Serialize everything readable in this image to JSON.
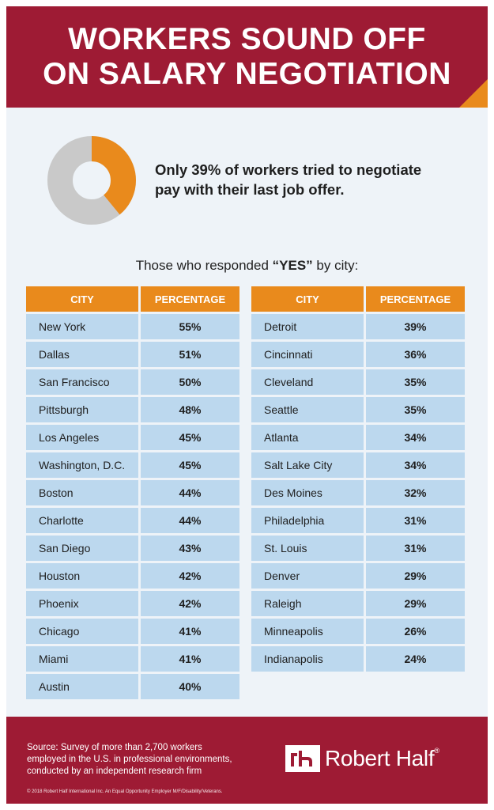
{
  "header": {
    "title_line1": "WORKERS SOUND OFF",
    "title_line2": "ON SALARY NEGOTIATION"
  },
  "summary": {
    "percentage": 39,
    "headline_line1": "Only 39% of workers tried to negotiate",
    "headline_line2": "pay with their last job offer.",
    "colors": {
      "yes": "#e98a1c",
      "no": "#c9c9c9"
    }
  },
  "table_intro": {
    "before": "Those who responded ",
    "emphasis": "“YES”",
    "after": " by city:"
  },
  "table": {
    "columns": [
      "CITY",
      "PERCENTAGE"
    ],
    "left_rows": [
      {
        "city": "New York",
        "pct": "55%"
      },
      {
        "city": "Dallas",
        "pct": "51%"
      },
      {
        "city": "San Francisco",
        "pct": "50%"
      },
      {
        "city": "Pittsburgh",
        "pct": "48%"
      },
      {
        "city": "Los Angeles",
        "pct": "45%"
      },
      {
        "city": "Washington, D.C.",
        "pct": "45%"
      },
      {
        "city": "Boston",
        "pct": "44%"
      },
      {
        "city": "Charlotte",
        "pct": "44%"
      },
      {
        "city": "San Diego",
        "pct": "43%"
      },
      {
        "city": "Houston",
        "pct": "42%"
      },
      {
        "city": "Phoenix",
        "pct": "42%"
      },
      {
        "city": "Chicago",
        "pct": "41%"
      },
      {
        "city": "Miami",
        "pct": "41%"
      },
      {
        "city": "Austin",
        "pct": "40%"
      }
    ],
    "right_rows": [
      {
        "city": "Detroit",
        "pct": "39%"
      },
      {
        "city": "Cincinnati",
        "pct": "36%"
      },
      {
        "city": "Cleveland",
        "pct": "35%"
      },
      {
        "city": "Seattle",
        "pct": "35%"
      },
      {
        "city": "Atlanta",
        "pct": "34%"
      },
      {
        "city": "Salt Lake City",
        "pct": "34%"
      },
      {
        "city": "Des Moines",
        "pct": "32%"
      },
      {
        "city": "Philadelphia",
        "pct": "31%"
      },
      {
        "city": "St. Louis",
        "pct": "31%"
      },
      {
        "city": "Denver",
        "pct": "29%"
      },
      {
        "city": "Raleigh",
        "pct": "29%"
      },
      {
        "city": "Minneapolis",
        "pct": "26%"
      },
      {
        "city": "Indianapolis",
        "pct": "24%"
      }
    ]
  },
  "footer": {
    "source_line1": "Source: Survey of more than 2,700 workers",
    "source_line2": "employed in the U.S. in professional environments,",
    "source_line3": "conducted by an independent research firm",
    "legal": "© 2018 Robert Half International Inc. An Equal Opportunity Employer M/F/Disability/Veterans.",
    "brand": "Robert Half",
    "registered": "®",
    "logo_mark": "rh"
  },
  "theme": {
    "header_bg": "#9e1b34",
    "accent_orange": "#e98a1c",
    "cell_blue": "#bcd8ee",
    "page_bg": "#eef3f8"
  }
}
